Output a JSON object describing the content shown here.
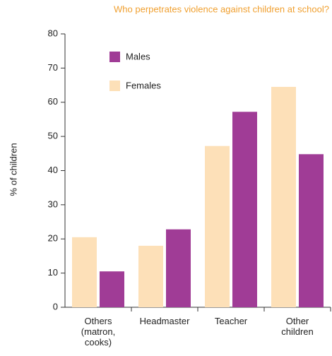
{
  "chart_data": {
    "type": "bar",
    "title": "Who perpetrates violence against children at school?",
    "y_label": "% of children",
    "categories": [
      "Others (matron, cooks)",
      "Headmaster",
      "Teacher",
      "Other children"
    ],
    "series": [
      {
        "name": "Females",
        "color": "#fde0b8",
        "values": [
          20.5,
          18,
          47.2,
          64.5
        ]
      },
      {
        "name": "Males",
        "color": "#a03c96",
        "values": [
          10.5,
          22.8,
          57.2,
          44.8
        ]
      }
    ],
    "ylim": [
      0,
      80
    ],
    "yticks": [
      0,
      10,
      20,
      30,
      40,
      50,
      60,
      70,
      80
    ],
    "grid": false
  }
}
